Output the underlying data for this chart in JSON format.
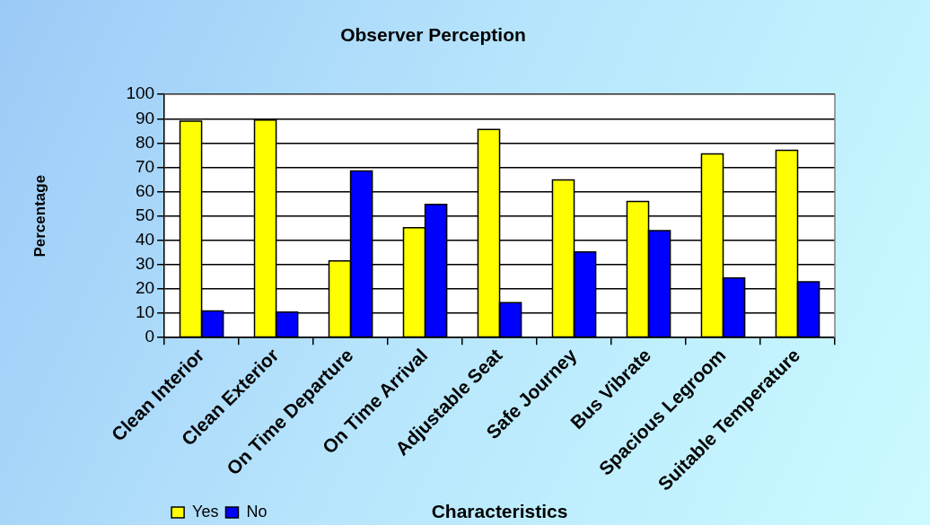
{
  "chart_data": {
    "type": "bar",
    "title": "Observer Perception",
    "xlabel": "Characteristics",
    "ylabel": "Percentage",
    "categories": [
      "Clean Interior",
      "Clean Exterior",
      "On Time Departure",
      "On Time Arrival",
      "Adjustable Seat",
      "Safe Journey",
      "Bus Vibrate",
      "Spacious Legroom",
      "Suitable Temperature"
    ],
    "series": [
      {
        "name": "Yes",
        "color": "#ffff00",
        "values": [
          89,
          89.5,
          31.5,
          45.2,
          85.6,
          64.8,
          56,
          75.5,
          77
        ]
      },
      {
        "name": "No",
        "color": "#0000ff",
        "values": [
          11,
          10.5,
          68.5,
          54.8,
          14.4,
          35.2,
          44,
          24.5,
          23
        ]
      }
    ],
    "ylim": [
      0,
      100
    ],
    "yticks": [
      0,
      10,
      20,
      30,
      40,
      50,
      60,
      70,
      80,
      90,
      100
    ],
    "grid": "y",
    "legend": "bottom left"
  }
}
